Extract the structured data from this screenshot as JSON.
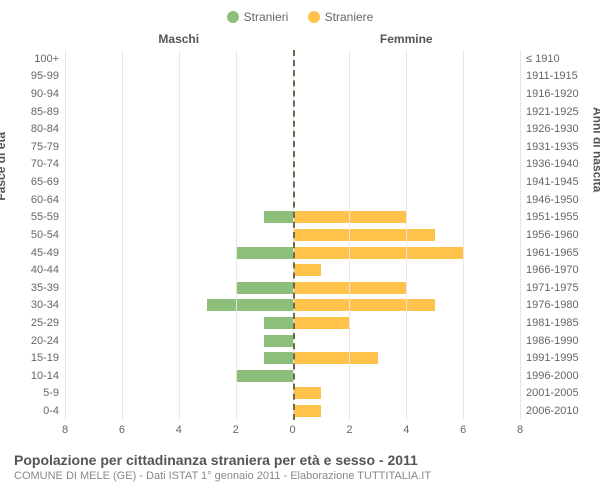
{
  "legend": {
    "male": {
      "label": "Stranieri",
      "color": "#8cbf7a"
    },
    "female": {
      "label": "Straniere",
      "color": "#ffc24b"
    }
  },
  "column_titles": {
    "left": "Maschi",
    "right": "Femmine"
  },
  "axis_titles": {
    "left": "Fasce di età",
    "right": "Anni di nascita"
  },
  "chart": {
    "type": "population-pyramid",
    "xlim": [
      0,
      8
    ],
    "xticks": [
      0,
      2,
      4,
      6,
      8
    ],
    "grid_color": "#e6e6e6",
    "bar_colors": {
      "male": "#8cbf7a",
      "female": "#ffc24b"
    },
    "center_line_color": "#6b6b47",
    "background_color": "#ffffff",
    "label_fontsize": 11,
    "rows": [
      {
        "age": "100+",
        "birth": "≤ 1910",
        "male": 0.0,
        "female": 0.0
      },
      {
        "age": "95-99",
        "birth": "1911-1915",
        "male": 0.0,
        "female": 0.0
      },
      {
        "age": "90-94",
        "birth": "1916-1920",
        "male": 0.0,
        "female": 0.0
      },
      {
        "age": "85-89",
        "birth": "1921-1925",
        "male": 0.0,
        "female": 0.0
      },
      {
        "age": "80-84",
        "birth": "1926-1930",
        "male": 0.0,
        "female": 0.0
      },
      {
        "age": "75-79",
        "birth": "1931-1935",
        "male": 0.0,
        "female": 0.0
      },
      {
        "age": "70-74",
        "birth": "1936-1940",
        "male": 0.0,
        "female": 0.0
      },
      {
        "age": "65-69",
        "birth": "1941-1945",
        "male": 0.0,
        "female": 0.0
      },
      {
        "age": "60-64",
        "birth": "1946-1950",
        "male": 0.0,
        "female": 0.0
      },
      {
        "age": "55-59",
        "birth": "1951-1955",
        "male": 1.0,
        "female": 4.0
      },
      {
        "age": "50-54",
        "birth": "1956-1960",
        "male": 0.0,
        "female": 5.0
      },
      {
        "age": "45-49",
        "birth": "1961-1965",
        "male": 2.0,
        "female": 6.0
      },
      {
        "age": "40-44",
        "birth": "1966-1970",
        "male": 0.0,
        "female": 1.0
      },
      {
        "age": "35-39",
        "birth": "1971-1975",
        "male": 2.0,
        "female": 4.0
      },
      {
        "age": "30-34",
        "birth": "1976-1980",
        "male": 3.0,
        "female": 5.0
      },
      {
        "age": "25-29",
        "birth": "1981-1985",
        "male": 1.0,
        "female": 2.0
      },
      {
        "age": "20-24",
        "birth": "1986-1990",
        "male": 1.0,
        "female": 0.0
      },
      {
        "age": "15-19",
        "birth": "1991-1995",
        "male": 1.0,
        "female": 3.0
      },
      {
        "age": "10-14",
        "birth": "1996-2000",
        "male": 2.0,
        "female": 0.0
      },
      {
        "age": "5-9",
        "birth": "2001-2005",
        "male": 0.0,
        "female": 1.0
      },
      {
        "age": "0-4",
        "birth": "2006-2010",
        "male": 0.0,
        "female": 1.0
      }
    ]
  },
  "footer": {
    "title": "Popolazione per cittadinanza straniera per età e sesso - 2011",
    "subtitle": "COMUNE DI MELE (GE) - Dati ISTAT 1° gennaio 2011 - Elaborazione TUTTITALIA.IT"
  }
}
